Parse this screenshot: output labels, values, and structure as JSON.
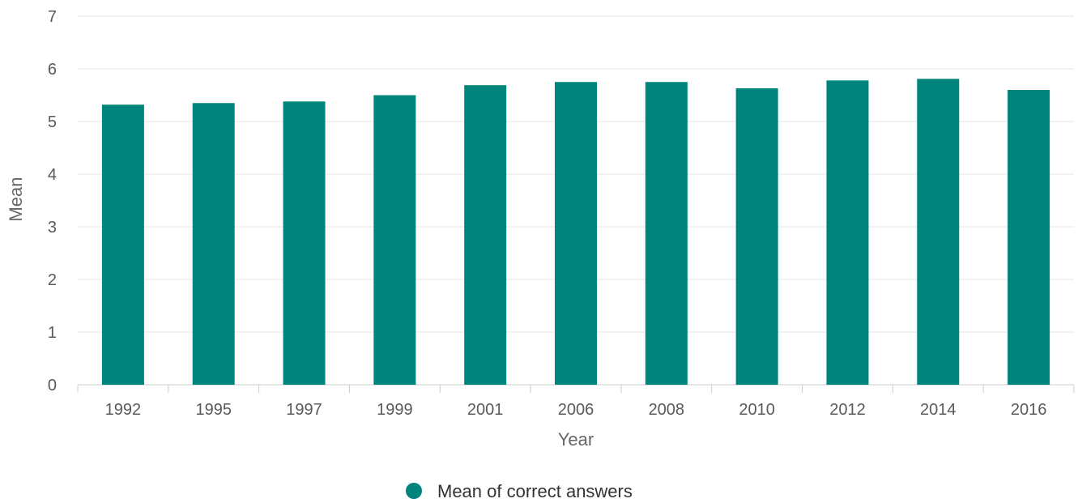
{
  "chart_data": {
    "type": "bar",
    "categories": [
      "1992",
      "1995",
      "1997",
      "1999",
      "2001",
      "2006",
      "2008",
      "2010",
      "2012",
      "2014",
      "2016"
    ],
    "series": [
      {
        "name": "Mean of correct answers",
        "values": [
          5.32,
          5.35,
          5.38,
          5.5,
          5.69,
          5.75,
          5.75,
          5.63,
          5.78,
          5.81,
          5.6
        ],
        "color": "#00857c"
      }
    ],
    "title": "",
    "xlabel": "Year",
    "ylabel": "Mean",
    "ylim": [
      0,
      7
    ],
    "yticks": [
      "0",
      "1",
      "2",
      "3",
      "4",
      "5",
      "6",
      "7"
    ],
    "grid": true,
    "legend_position": "bottom-center"
  }
}
